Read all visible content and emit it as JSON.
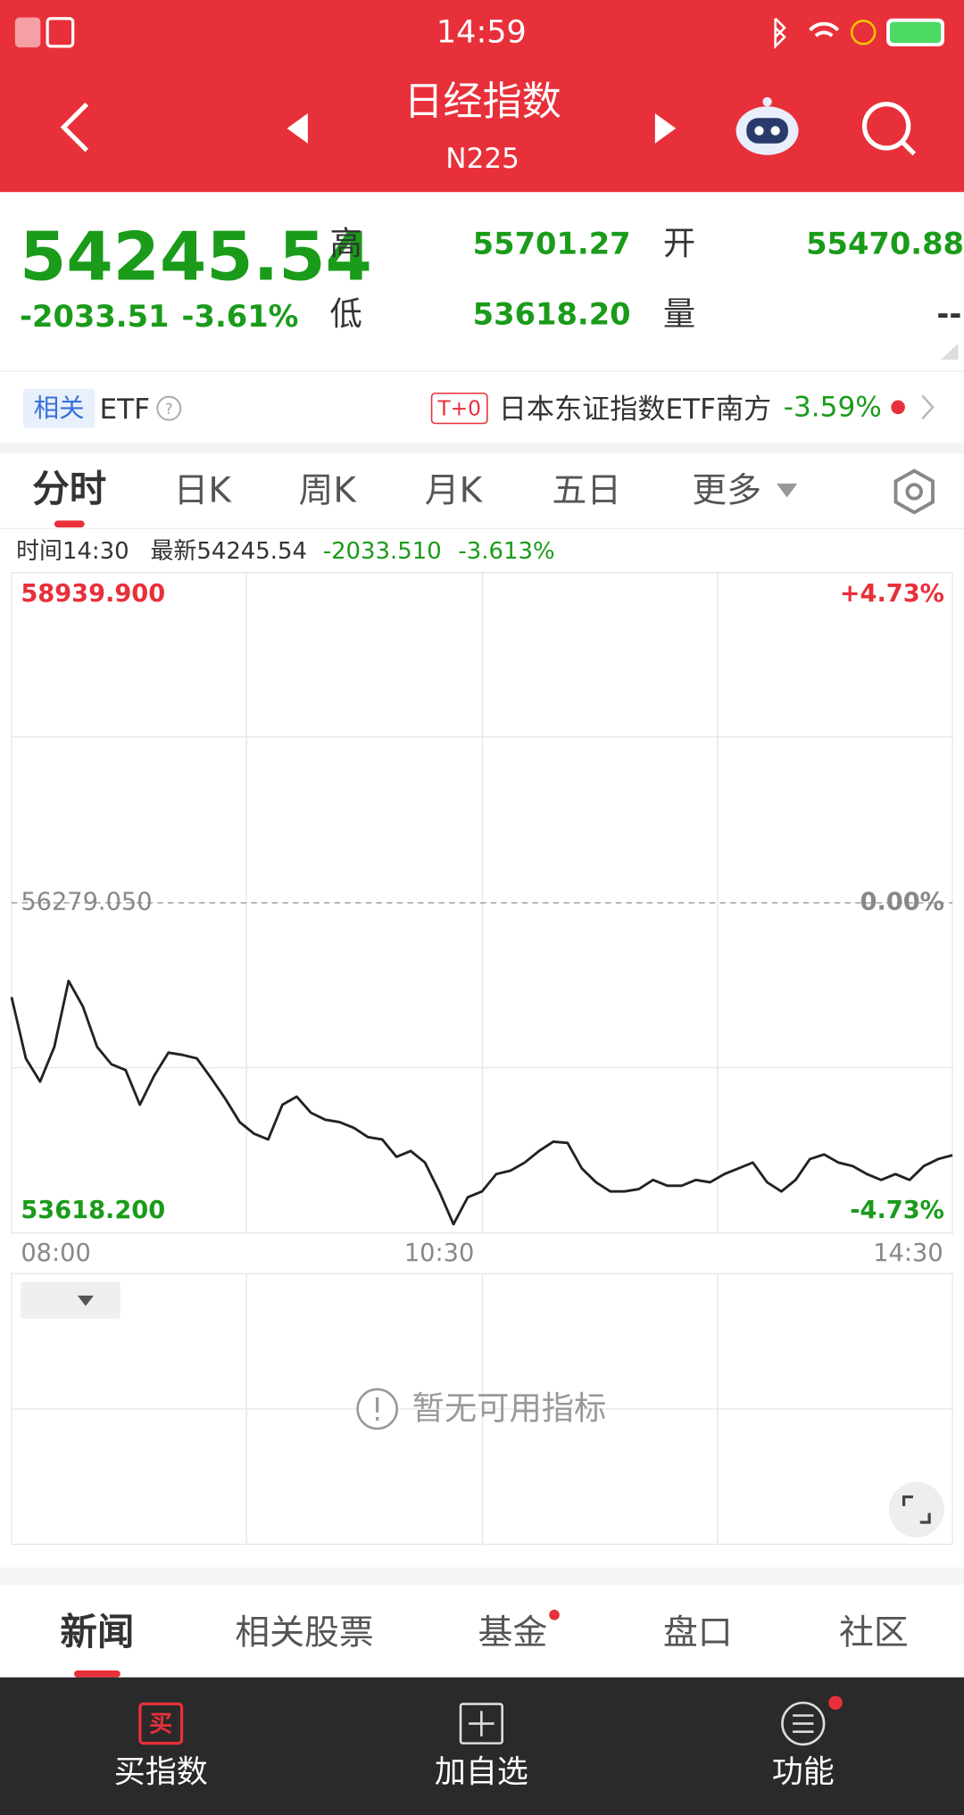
{
  "status_bar": {
    "time": "14:59"
  },
  "header": {
    "title": "日经指数",
    "code": "N225"
  },
  "quote": {
    "price": "54245.54",
    "change": "-2033.51",
    "change_pct": "-3.61%",
    "fields": [
      {
        "label": "高",
        "value": "55701.27"
      },
      {
        "label": "开",
        "value": "55470.88"
      },
      {
        "label": "低",
        "value": "53618.20"
      },
      {
        "label": "量",
        "value": "--"
      }
    ]
  },
  "etf": {
    "tag": "相关",
    "label": "ETF",
    "badge": "T+0",
    "name": "日本东证指数ETF南方",
    "change": "-3.59%"
  },
  "tabs": [
    "分时",
    "日K",
    "周K",
    "月K",
    "五日",
    "更多"
  ],
  "info": {
    "time": "时间14:30",
    "latest": "最新54245.54",
    "change": "-2033.510",
    "change_pct": "-3.613%"
  },
  "chart_data": {
    "type": "line",
    "categories": [
      "08:00",
      null,
      null,
      null,
      null,
      null,
      null,
      null,
      null,
      null,
      null,
      null,
      null,
      null,
      null,
      null,
      null,
      null,
      null,
      null,
      null,
      null,
      null,
      null,
      null,
      null,
      null,
      null,
      null,
      null,
      "10:30",
      null,
      null,
      null,
      null,
      null,
      null,
      null,
      null,
      null,
      null,
      null,
      null,
      null,
      null,
      null,
      null,
      null,
      null,
      null,
      null,
      null,
      null,
      null,
      null,
      null,
      null,
      null,
      null,
      null,
      null,
      null,
      null,
      null,
      null,
      null,
      "14:30"
    ],
    "values": [
      55520,
      55026,
      54839,
      55119,
      55650,
      55445,
      55119,
      54979,
      54932,
      54653,
      54886,
      55072,
      55054,
      55026,
      54867,
      54700,
      54513,
      54420,
      54373,
      54653,
      54718,
      54588,
      54532,
      54513,
      54467,
      54392,
      54373,
      54233,
      54280,
      54187,
      53954,
      53690,
      53907,
      53954,
      54094,
      54122,
      54187,
      54280,
      54355,
      54345,
      54140,
      54028,
      53954,
      53954,
      53973,
      54047,
      54000,
      54000,
      54047,
      54028,
      54094,
      54140,
      54187,
      54028,
      53954,
      54047,
      54215,
      54252,
      54187,
      54159,
      54094,
      54047,
      54094,
      54047,
      54159,
      54215,
      54245.54
    ],
    "color": "#222222",
    "ylim": [
      53618.2,
      58939.9
    ],
    "yticks": [
      {
        "value": 58939.9,
        "label": "58939.900"
      },
      {
        "value": 56279.05,
        "label": "56279.050"
      },
      {
        "value": 53618.2,
        "label": "53618.200"
      }
    ],
    "y2lim": [
      -4.73,
      4.73
    ],
    "y2ticks": [
      {
        "value": 4.73,
        "label": "+4.73%"
      },
      {
        "value": 0,
        "label": "0.00%"
      },
      {
        "value": -4.73,
        "label": "-4.73%"
      }
    ],
    "grid": true
  },
  "indicator": {
    "empty_text": "暂无可用指标"
  },
  "section_tabs": [
    "新闻",
    "相关股票",
    "基金",
    "盘口",
    "社区"
  ],
  "toolbar": [
    {
      "icon": "买",
      "label": "买指数"
    },
    {
      "label": "加自选"
    },
    {
      "label": "功能"
    }
  ]
}
